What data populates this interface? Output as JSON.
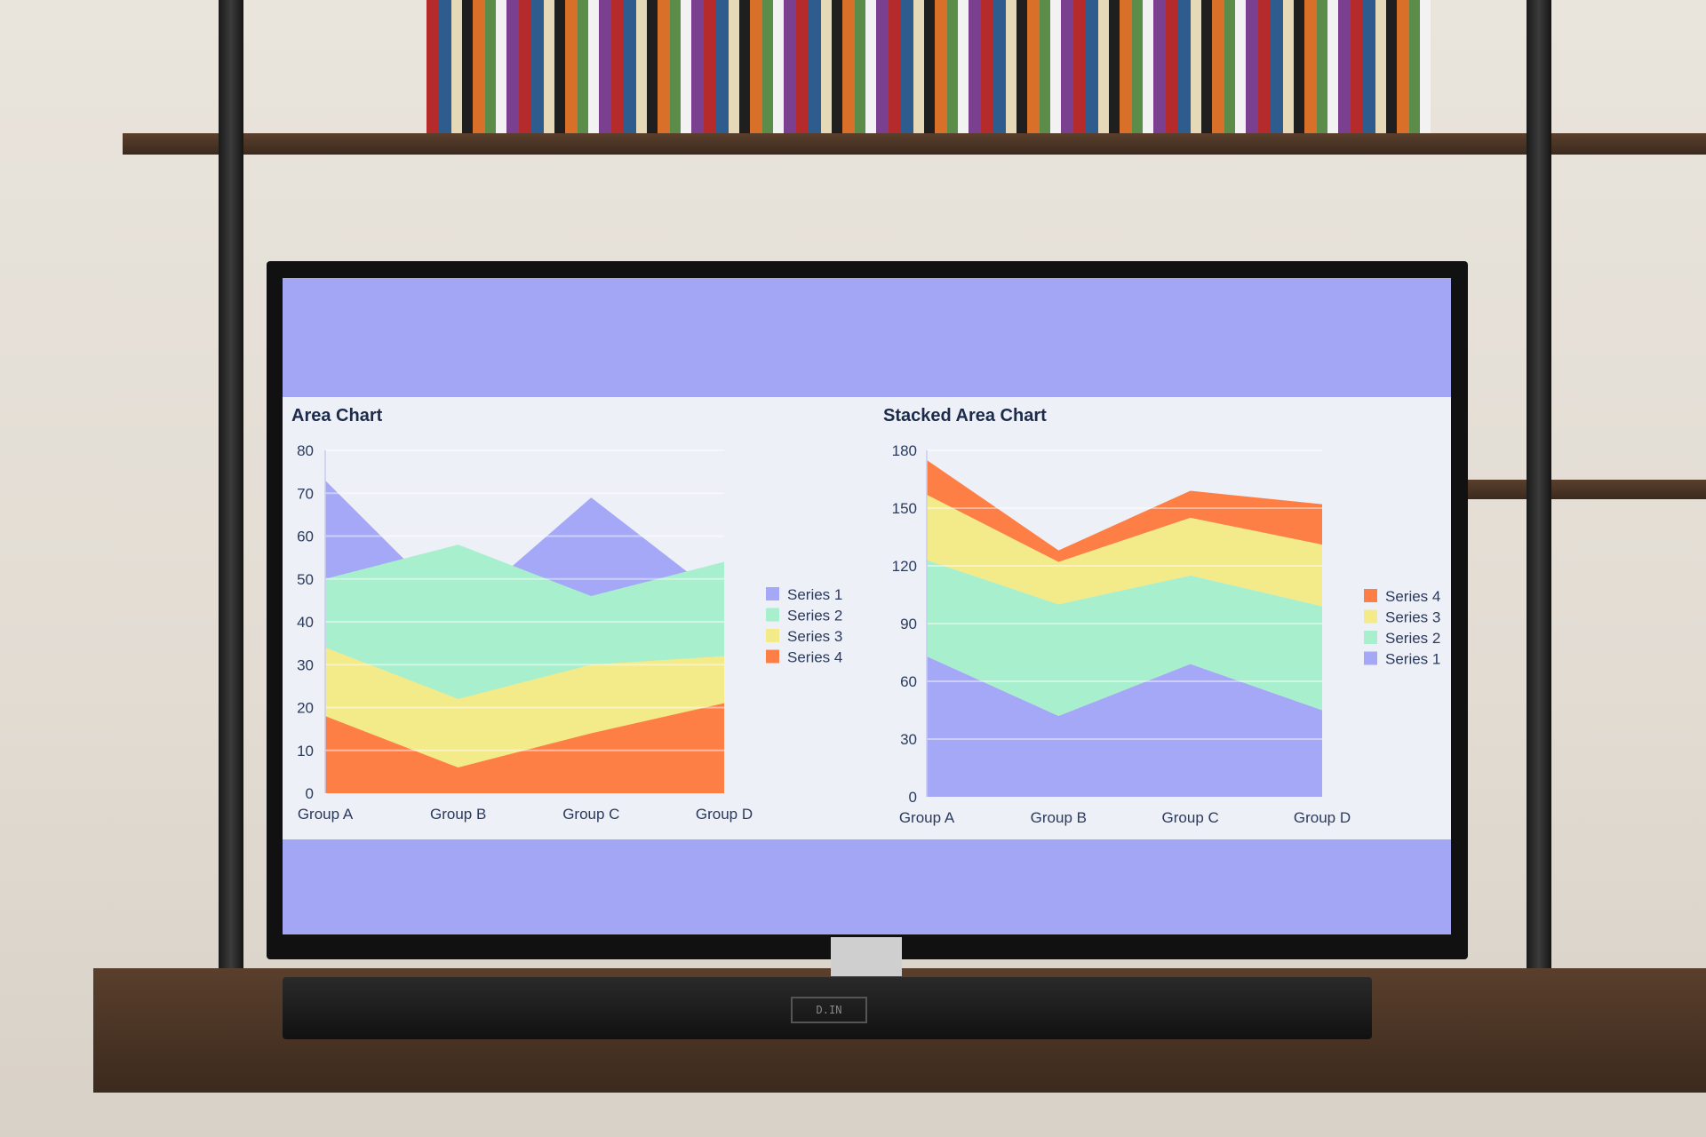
{
  "colors": {
    "series1": "#a4a8f6",
    "series2": "#a8f0cd",
    "series3": "#f3ea8a",
    "series4": "#fe7f45",
    "screen_band": "#a3a5f5",
    "panel": "#eef0f8",
    "text": "#1c2b4a",
    "axis_text": "#2a3a5c"
  },
  "soundbar_display": "D.IN",
  "chart_data": [
    {
      "type": "area",
      "title": "Area Chart",
      "stacked": false,
      "categories": [
        "Group A",
        "Group B",
        "Group C",
        "Group D"
      ],
      "ylim": [
        0,
        80
      ],
      "yticks": [
        0,
        10,
        20,
        30,
        40,
        50,
        60,
        70,
        80
      ],
      "grid": true,
      "legend": "right",
      "series": [
        {
          "name": "Series 1",
          "values": [
            73,
            42,
            69,
            45
          ]
        },
        {
          "name": "Series 2",
          "values": [
            50,
            58,
            46,
            54
          ]
        },
        {
          "name": "Series 3",
          "values": [
            34,
            22,
            30,
            32
          ]
        },
        {
          "name": "Series 4",
          "values": [
            18,
            6,
            14,
            21
          ]
        }
      ]
    },
    {
      "type": "area",
      "title": "Stacked Area Chart",
      "stacked": true,
      "categories": [
        "Group A",
        "Group B",
        "Group C",
        "Group D"
      ],
      "ylim": [
        0,
        180
      ],
      "yticks": [
        0,
        30,
        60,
        90,
        120,
        150,
        180
      ],
      "grid": true,
      "legend": "right",
      "series": [
        {
          "name": "Series 1",
          "values": [
            73,
            42,
            69,
            45
          ]
        },
        {
          "name": "Series 2",
          "values": [
            50,
            58,
            46,
            54
          ]
        },
        {
          "name": "Series 3",
          "values": [
            34,
            22,
            30,
            32
          ]
        },
        {
          "name": "Series 4",
          "values": [
            18,
            6,
            14,
            21
          ]
        }
      ]
    }
  ]
}
